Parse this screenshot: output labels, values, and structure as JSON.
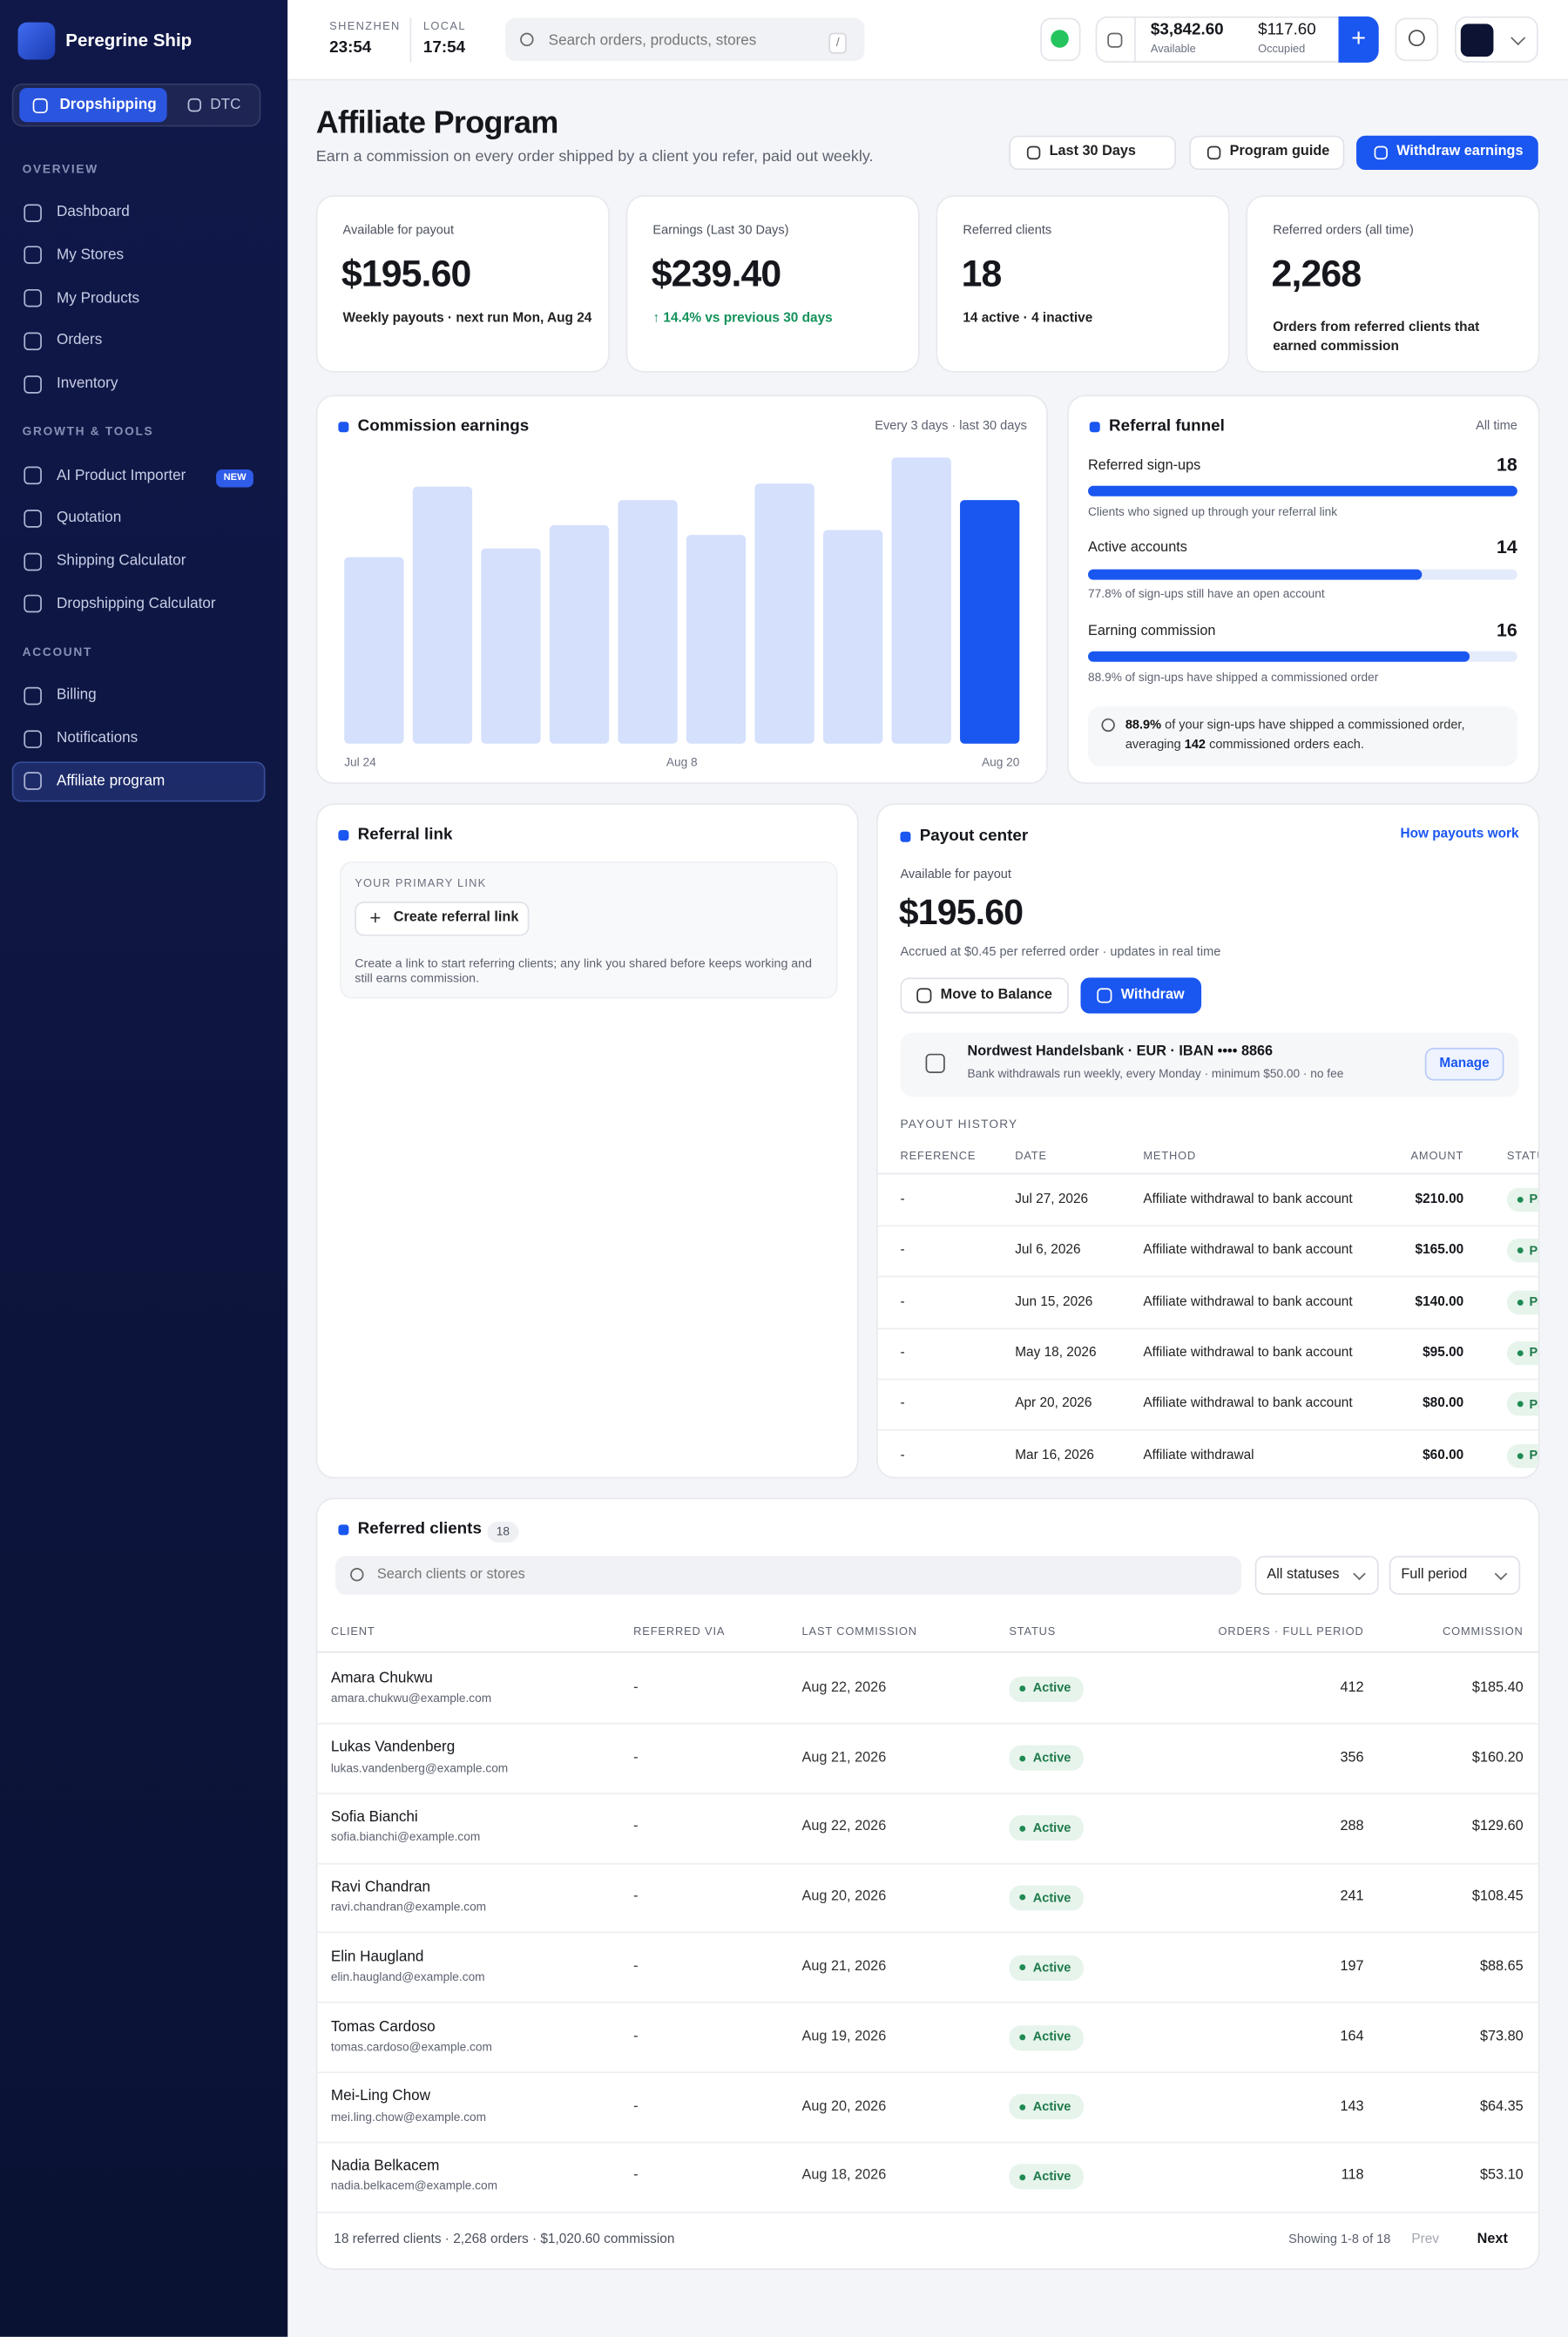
{
  "sidebar": {
    "brand": "Peregrine Ship",
    "modes": [
      "Dropshipping",
      "DTC"
    ],
    "sections": [
      {
        "title": "OVERVIEW",
        "items": [
          {
            "label": "Dashboard"
          },
          {
            "label": "My Stores"
          },
          {
            "label": "My Products"
          },
          {
            "label": "Orders"
          },
          {
            "label": "Inventory"
          }
        ]
      },
      {
        "title": "GROWTH & TOOLS",
        "items": [
          {
            "label": "AI Product Importer",
            "badge": "NEW"
          },
          {
            "label": "Quotation"
          },
          {
            "label": "Shipping Calculator"
          },
          {
            "label": "Dropshipping Calculator"
          }
        ]
      },
      {
        "title": "ACCOUNT",
        "items": [
          {
            "label": "Billing"
          },
          {
            "label": "Notifications"
          },
          {
            "label": "Affiliate program",
            "active": true
          }
        ]
      }
    ]
  },
  "topbar": {
    "clocks": [
      {
        "city": "SHENZHEN",
        "time": "23:54"
      },
      {
        "city": "LOCAL",
        "time": "17:54"
      }
    ],
    "search": "Search orders, products, stores",
    "search_key": "/",
    "balance": {
      "available": "$3,842.60",
      "available_label": "Available",
      "occupied": "$117.60",
      "occupied_label": "Occupied"
    }
  },
  "header": {
    "title": "Affiliate Program",
    "subtitle": "Earn a commission on every order shipped by a client you refer, paid out weekly.",
    "buttons": [
      "Last 30 Days",
      "Program guide",
      "Withdraw earnings"
    ]
  },
  "stats": [
    {
      "label": "Available for payout",
      "value": "$195.60",
      "note": "Weekly payouts · next run Mon, Aug 24"
    },
    {
      "label": "Earnings (Last 30 Days)",
      "value": "$239.40",
      "note": "↑ 14.4% vs previous 30 days"
    },
    {
      "label": "Referred clients",
      "value": "18",
      "note": "14 active · 4 inactive"
    },
    {
      "label": "Referred orders (all time)",
      "value": "2,268",
      "note": "Orders from referred clients that earned commission"
    }
  ],
  "chart_data": {
    "type": "bar",
    "title": "Commission earnings",
    "subtitle": "Every 3 days · last 30 days",
    "categories": [
      "Jul 24",
      null,
      null,
      null,
      null,
      "Aug 8",
      null,
      null,
      null,
      "Aug 20"
    ],
    "values": [
      19.3,
      26.6,
      20.2,
      22.6,
      25.2,
      21.6,
      26.9,
      22.1,
      29.6,
      25.2
    ],
    "color": "#d4e0fc",
    "highlight_color": "#1a56f0"
  },
  "funnel": {
    "title": "Referral funnel",
    "period": "All time",
    "steps": [
      {
        "label": "Referred sign-ups",
        "value": 18,
        "note": "Clients who signed up through your referral link"
      },
      {
        "label": "Active accounts",
        "value": 14,
        "note": "77.8% of sign-ups still have an open account"
      },
      {
        "label": "Earning commission",
        "value": 16,
        "note": "88.9% of sign-ups have shipped a commissioned order"
      }
    ],
    "summary": [
      "88.9%",
      " of your sign-ups have shipped a commissioned order, averaging ",
      "142",
      " commissioned orders each."
    ]
  },
  "referral_link": {
    "title": "Referral link",
    "label": "YOUR PRIMARY LINK",
    "button": "Create referral link",
    "text": "Create a link to start referring clients; any link you shared before keeps working and still earns commission."
  },
  "payout": {
    "title": "Payout center",
    "link": "How payouts work",
    "label": "Available for payout",
    "amount": "$195.60",
    "note": "Accrued at $0.45 per referred order · updates in real time",
    "buttons": [
      "Move to Balance",
      "Withdraw"
    ],
    "bank": {
      "name": "Nordwest Handelsbank · EUR · IBAN •••• 8866",
      "note": "Bank withdrawals run weekly, every Monday · minimum $50.00 · no fee",
      "button": "Manage"
    },
    "history_title": "PAYOUT HISTORY",
    "columns": [
      "REFERENCE",
      "DATE",
      "METHOD",
      "AMOUNT",
      "STATUS"
    ],
    "rows": [
      [
        "-",
        "Jul 27, 2026",
        "Affiliate withdrawal to bank account",
        "$210.00",
        "Paid"
      ],
      [
        "-",
        "Jul 6, 2026",
        "Affiliate withdrawal to bank account",
        "$165.00",
        "Paid"
      ],
      [
        "-",
        "Jun 15, 2026",
        "Affiliate withdrawal to bank account",
        "$140.00",
        "Paid"
      ],
      [
        "-",
        "May 18, 2026",
        "Affiliate withdrawal to bank account",
        "$95.00",
        "Paid"
      ],
      [
        "-",
        "Apr 20, 2026",
        "Affiliate withdrawal to bank account",
        "$80.00",
        "Paid"
      ],
      [
        "-",
        "Mar 16, 2026",
        "Affiliate withdrawal",
        "$60.00",
        "Paid"
      ]
    ]
  },
  "clients": {
    "title": "Referred clients",
    "count": 18,
    "search": "Search clients or stores",
    "filters": [
      "All statuses",
      "Full period"
    ],
    "columns": [
      "CLIENT",
      "REFERRED VIA",
      "LAST COMMISSION",
      "STATUS",
      "ORDERS · FULL PERIOD",
      "COMMISSION"
    ],
    "rows": [
      {
        "name": "Amara Chukwu",
        "email": "amara.chukwu@example.com",
        "via": "-",
        "last": "Aug 22, 2026",
        "status": "Active",
        "orders": 412,
        "commission": "$185.40"
      },
      {
        "name": "Lukas Vandenberg",
        "email": "lukas.vandenberg@example.com",
        "via": "-",
        "last": "Aug 21, 2026",
        "status": "Active",
        "orders": 356,
        "commission": "$160.20"
      },
      {
        "name": "Sofia Bianchi",
        "email": "sofia.bianchi@example.com",
        "via": "-",
        "last": "Aug 22, 2026",
        "status": "Active",
        "orders": 288,
        "commission": "$129.60"
      },
      {
        "name": "Ravi Chandran",
        "email": "ravi.chandran@example.com",
        "via": "-",
        "last": "Aug 20, 2026",
        "status": "Active",
        "orders": 241,
        "commission": "$108.45"
      },
      {
        "name": "Elin Haugland",
        "email": "elin.haugland@example.com",
        "via": "-",
        "last": "Aug 21, 2026",
        "status": "Active",
        "orders": 197,
        "commission": "$88.65"
      },
      {
        "name": "Tomas Cardoso",
        "email": "tomas.cardoso@example.com",
        "via": "-",
        "last": "Aug 19, 2026",
        "status": "Active",
        "orders": 164,
        "commission": "$73.80"
      },
      {
        "name": "Mei-Ling Chow",
        "email": "mei.ling.chow@example.com",
        "via": "-",
        "last": "Aug 20, 2026",
        "status": "Active",
        "orders": 143,
        "commission": "$64.35"
      },
      {
        "name": "Nadia Belkacem",
        "email": "nadia.belkacem@example.com",
        "via": "-",
        "last": "Aug 18, 2026",
        "status": "Active",
        "orders": 118,
        "commission": "$53.10"
      }
    ],
    "footer": "18 referred clients · 2,268 orders · $1,020.60 commission",
    "showing": "Showing 1-8 of 18",
    "prev": "Prev",
    "next": "Next"
  }
}
